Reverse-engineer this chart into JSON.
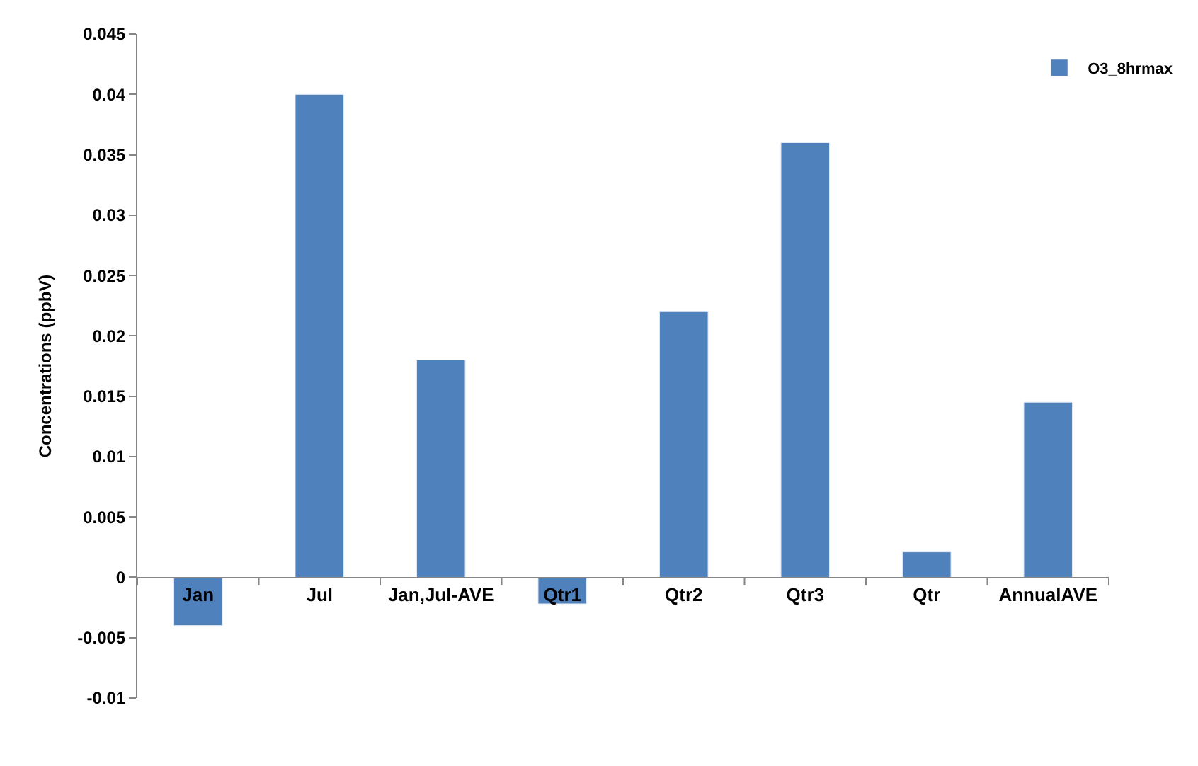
{
  "chart_data": {
    "type": "bar",
    "ylabel": "Concentrations (ppbV)",
    "categories": [
      "Jan",
      "Jul",
      "Jan,Jul-AVE",
      "Qtr1",
      "Qtr2",
      "Qtr3",
      "Qtr",
      "AnnualAVE"
    ],
    "series": [
      {
        "name": "O3_8hrmax",
        "color": "#4f81bd",
        "values": [
          -0.004,
          0.04,
          0.018,
          -0.0022,
          0.022,
          0.036,
          0.0021,
          0.0145
        ]
      }
    ],
    "ylim": [
      -0.01,
      0.045
    ],
    "yticks": [
      -0.01,
      -0.005,
      0,
      0.005,
      0.01,
      0.015,
      0.02,
      0.025,
      0.03,
      0.035,
      0.04,
      0.045
    ],
    "legend": "top right"
  }
}
